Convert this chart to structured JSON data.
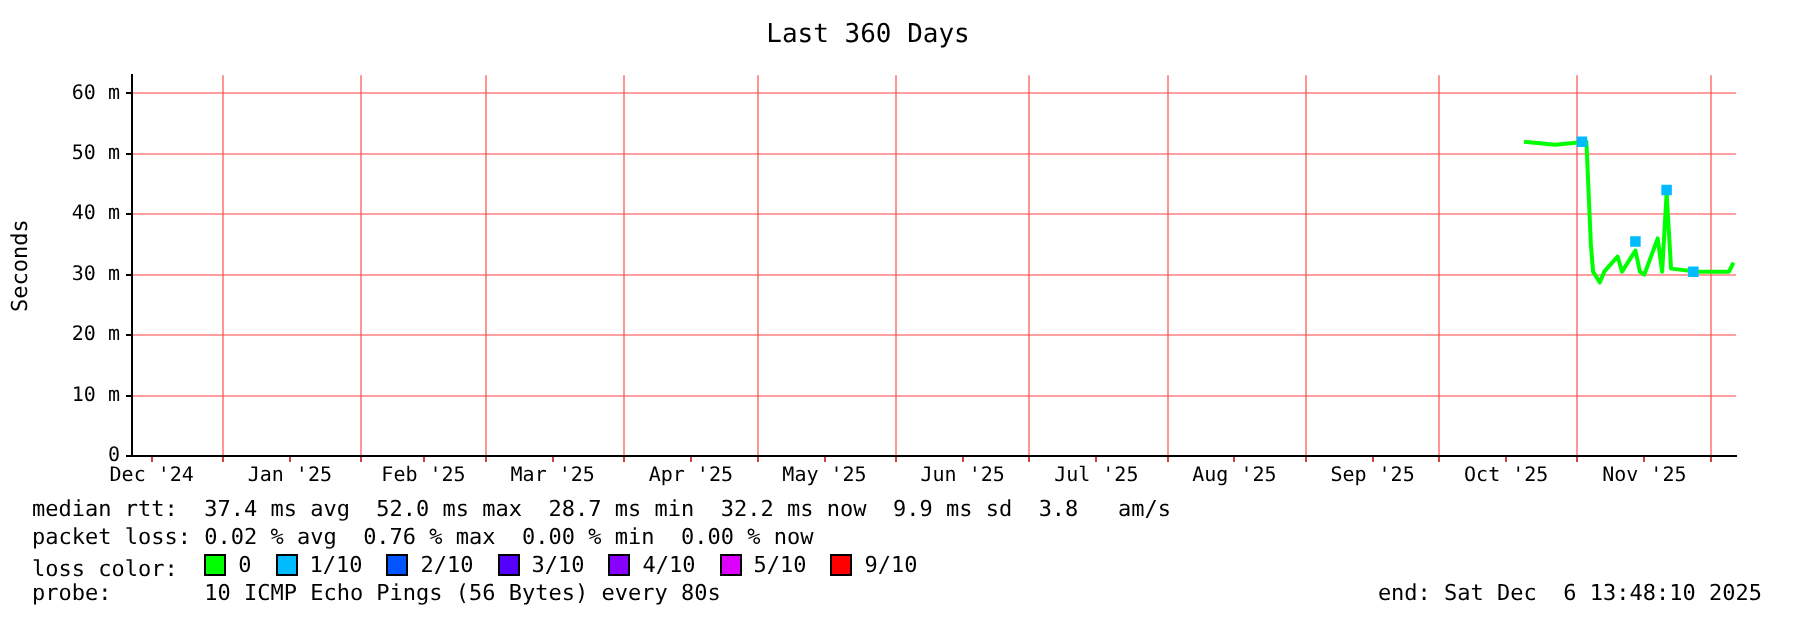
{
  "chart_data": {
    "type": "line",
    "title": "Last 360 Days",
    "ylabel": "Seconds",
    "xlim": [
      "2024-12-11T13:48",
      "2025-12-06T13:48"
    ],
    "xticks": [
      {
        "value": "2024-12-16",
        "label": "Dec '24"
      },
      {
        "value": "2025-01-01",
        "label": null
      },
      {
        "value": "2025-01-16",
        "label": "Jan '25"
      },
      {
        "value": "2025-02-01",
        "label": null
      },
      {
        "value": "2025-02-15",
        "label": "Feb '25"
      },
      {
        "value": "2025-03-01",
        "label": null
      },
      {
        "value": "2025-03-16",
        "label": "Mar '25"
      },
      {
        "value": "2025-04-01",
        "label": null
      },
      {
        "value": "2025-04-16",
        "label": "Apr '25"
      },
      {
        "value": "2025-05-01",
        "label": null
      },
      {
        "value": "2025-05-16",
        "label": "May '25"
      },
      {
        "value": "2025-06-01",
        "label": null
      },
      {
        "value": "2025-06-16",
        "label": "Jun '25"
      },
      {
        "value": "2025-07-01",
        "label": null
      },
      {
        "value": "2025-07-16",
        "label": "Jul '25"
      },
      {
        "value": "2025-08-01",
        "label": null
      },
      {
        "value": "2025-08-16",
        "label": "Aug '25"
      },
      {
        "value": "2025-09-01",
        "label": null
      },
      {
        "value": "2025-09-16",
        "label": "Sep '25"
      },
      {
        "value": "2025-10-01",
        "label": null
      },
      {
        "value": "2025-10-16",
        "label": "Oct '25"
      },
      {
        "value": "2025-11-01",
        "label": null
      },
      {
        "value": "2025-11-16",
        "label": "Nov '25"
      },
      {
        "value": "2025-12-01",
        "label": null
      }
    ],
    "ylim": [
      0,
      63
    ],
    "yticks": [
      0,
      {
        "value": 10,
        "label": "10 m"
      },
      {
        "value": 20,
        "label": "20 m"
      },
      {
        "value": 30,
        "label": "30 m"
      },
      {
        "value": 40,
        "label": "40 m"
      },
      {
        "value": 50,
        "label": "50 m"
      },
      {
        "value": 60,
        "label": "60 m"
      }
    ],
    "grid": true,
    "legend": "bottom",
    "legend_title": "loss color:",
    "series": [
      {
        "name": "0",
        "color": "#00ff00",
        "x": [
          "2025-10-20",
          "2025-10-27",
          "2025-11-03",
          "2025-11-04",
          "2025-11-04T12:00",
          "2025-11-06",
          "2025-11-07",
          "2025-11-10",
          "2025-11-11",
          "2025-11-14",
          "2025-11-15",
          "2025-11-16",
          "2025-11-19",
          "2025-11-20",
          "2025-11-21",
          "2025-11-22",
          "2025-11-28",
          "2025-12-05",
          "2025-12-06"
        ],
        "values": [
          52,
          51.5,
          52,
          35,
          30.5,
          28.7,
          30.5,
          33,
          30.5,
          34,
          30.5,
          30,
          36,
          30.5,
          43.5,
          31,
          30.5,
          30.5,
          32
        ]
      },
      {
        "name": "1/10",
        "color": "#00bbff",
        "type": "scatter",
        "x": [
          "2025-11-02",
          "2025-11-14",
          "2025-11-21",
          "2025-11-27"
        ],
        "values": [
          52,
          35.5,
          44,
          30.5
        ]
      },
      {
        "name": "2/10",
        "color": "#0055ff",
        "type": "scatter"
      },
      {
        "name": "3/10",
        "color": "#5500ff",
        "type": "scatter"
      },
      {
        "name": "4/10",
        "color": "#8800ff",
        "type": "scatter"
      },
      {
        "name": "5/10",
        "color": "#dd00ff",
        "type": "scatter"
      },
      {
        "name": "9/10",
        "color": "#ff0000",
        "type": "scatter"
      }
    ],
    "annotations": [
      "median rtt:  37.4 ms avg  52.0 ms max  28.7 ms min  32.2 ms now  9.9 ms sd  3.8   am/s",
      "packet loss: 0.02 % avg  0.76 % max  0.00 % min  0.00 % now",
      "probe:       10 ICMP Echo Pings (56 Bytes) every 80s",
      "end: Sat Dec  6 13:48:10 2025"
    ]
  }
}
